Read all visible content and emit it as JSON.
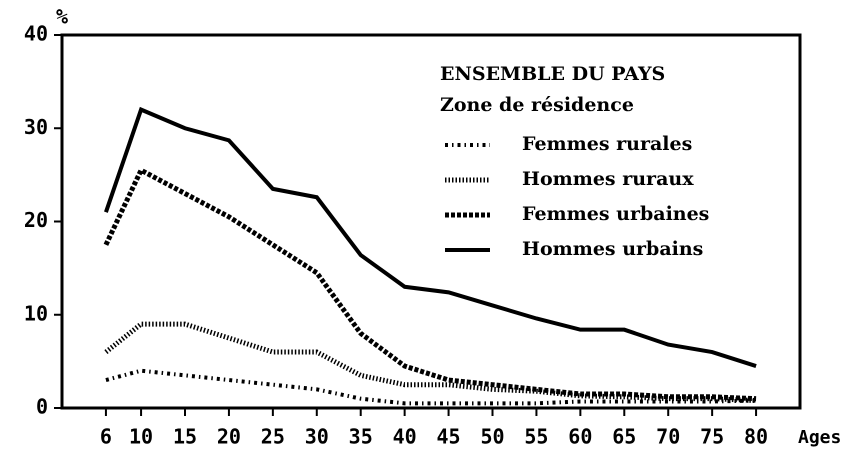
{
  "chart_data": {
    "type": "line",
    "legend_title": "ENSEMBLE DU PAYS",
    "legend_subtitle": "Zone de résidence",
    "y_unit": "%",
    "xlabel": "Ages",
    "x": [
      6,
      10,
      15,
      20,
      25,
      30,
      35,
      40,
      45,
      50,
      55,
      60,
      65,
      70,
      75,
      80
    ],
    "xlim": [
      1,
      85
    ],
    "xticks": [
      6,
      10,
      15,
      20,
      25,
      30,
      35,
      40,
      45,
      50,
      55,
      60,
      65,
      70,
      75,
      80
    ],
    "ylim": [
      0,
      40
    ],
    "yticks": [
      0,
      10,
      20,
      30,
      40
    ],
    "legend": "upper right",
    "series": [
      {
        "name": "Femmes rurales",
        "color": "#000000",
        "dash": "dashdot",
        "values": [
          3,
          4,
          3.5,
          3,
          2.5,
          2,
          1,
          0.5,
          0.5,
          0.5,
          0.5,
          0.7,
          0.7,
          0.7,
          0.7,
          0.8
        ]
      },
      {
        "name": "Hommes ruraux",
        "color": "#000000",
        "dash": "dotted",
        "values": [
          6,
          9,
          9,
          7.5,
          6,
          6,
          3.5,
          2.5,
          2.5,
          2,
          1.8,
          1.3,
          1.2,
          1,
          1,
          0.8
        ]
      },
      {
        "name": "Femmes urbaines",
        "color": "#000000",
        "dash": "dashed",
        "values": [
          17.5,
          25.5,
          23,
          20.5,
          17.5,
          14.5,
          8,
          4.5,
          3,
          2.5,
          2,
          1.5,
          1.5,
          1.2,
          1.2,
          1
        ]
      },
      {
        "name": "Hommes urbains",
        "color": "#000000",
        "dash": "solid",
        "values": [
          21,
          32,
          30,
          28.7,
          23.5,
          22.6,
          16.4,
          13,
          12.4,
          11,
          9.6,
          8.4,
          8.4,
          6.8,
          6,
          4.5
        ]
      }
    ]
  }
}
